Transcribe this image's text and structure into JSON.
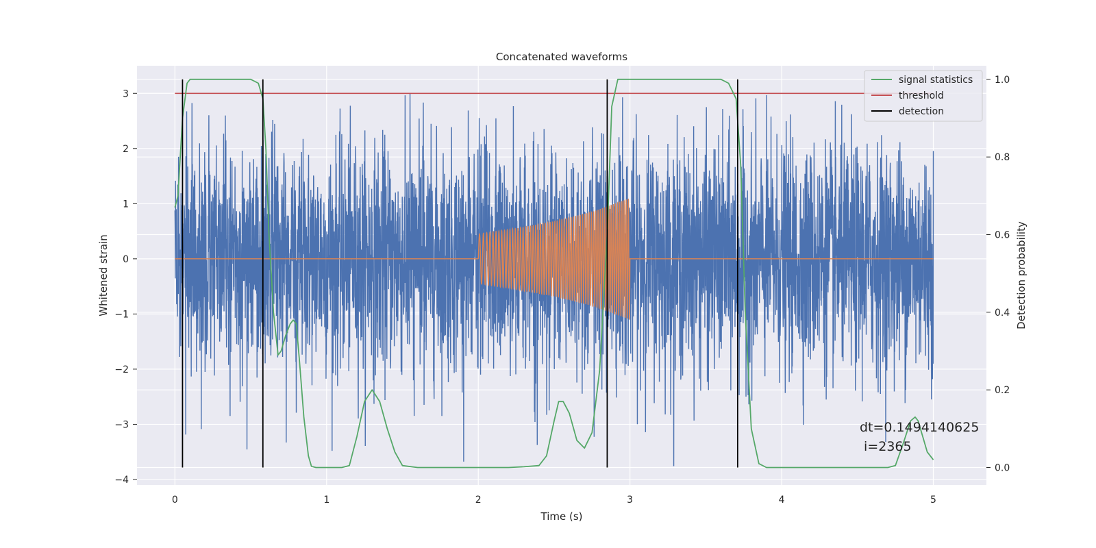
{
  "chart_data": {
    "type": "line",
    "title": "Concatenated waveforms",
    "xlabel": "Time (s)",
    "ylabel": "Whitened strain",
    "y2label": "Detection probability",
    "xlim": [
      -0.25,
      5.35
    ],
    "ylim": [
      -4.1,
      3.5
    ],
    "y2lim": [
      -0.045,
      1.035
    ],
    "x_ticks": [
      0,
      1,
      2,
      3,
      4,
      5
    ],
    "y_ticks": [
      -4,
      -3,
      -2,
      -1,
      0,
      1,
      2,
      3
    ],
    "y2_ticks": [
      0.0,
      0.2,
      0.4,
      0.6,
      0.8,
      1.0
    ],
    "x_tick_labels": [
      "0",
      "1",
      "2",
      "3",
      "4",
      "5"
    ],
    "y_tick_labels": [
      "−4",
      "−3",
      "−2",
      "−1",
      "0",
      "1",
      "2",
      "3"
    ],
    "y2_tick_labels": [
      "0.0",
      "0.2",
      "0.4",
      "0.6",
      "0.8",
      "1.0"
    ],
    "grid": true,
    "legend_position": "top-right",
    "series": [
      {
        "name": "",
        "axis": "left",
        "color": "#4c72b0",
        "description": "whitened noise, roughly Gaussian with standard deviation about 1, sampled densely from 0 to 5 s",
        "x_range": [
          0,
          5
        ],
        "approx_std": 1.0,
        "approx_extremes": [
          -3.8,
          3.0
        ]
      },
      {
        "name": "",
        "axis": "left",
        "color": "#dd8452",
        "description": "injected chirp signal, zero except between 2 and 3 s",
        "x": [
          0,
          2.0,
          2.25,
          2.5,
          2.75,
          3.0,
          5.0
        ],
        "envelope": [
          0,
          0.45,
          0.55,
          0.68,
          0.85,
          1.1,
          0
        ],
        "cycles_between_2_and_3s": 62
      },
      {
        "name": "signal statistics",
        "axis": "right",
        "color": "#55a868",
        "x": [
          0.0,
          0.02,
          0.05,
          0.08,
          0.1,
          0.15,
          0.2,
          0.3,
          0.4,
          0.5,
          0.55,
          0.58,
          0.6,
          0.62,
          0.65,
          0.68,
          0.7,
          0.73,
          0.76,
          0.78,
          0.8,
          0.82,
          0.85,
          0.88,
          0.9,
          0.93,
          1.0,
          1.1,
          1.15,
          1.2,
          1.25,
          1.3,
          1.35,
          1.4,
          1.45,
          1.5,
          1.6,
          1.8,
          2.0,
          2.2,
          2.3,
          2.4,
          2.45,
          2.5,
          2.53,
          2.56,
          2.6,
          2.65,
          2.7,
          2.75,
          2.8,
          2.85,
          2.88,
          2.92,
          3.0,
          3.2,
          3.5,
          3.6,
          3.65,
          3.7,
          3.73,
          3.76,
          3.8,
          3.85,
          3.9,
          4.0,
          4.2,
          4.5,
          4.7,
          4.75,
          4.8,
          4.85,
          4.88,
          4.9,
          4.93,
          4.96,
          5.0
        ],
        "values": [
          0.67,
          0.7,
          0.9,
          0.99,
          1.0,
          1.0,
          1.0,
          1.0,
          1.0,
          1.0,
          0.99,
          0.95,
          0.82,
          0.6,
          0.4,
          0.29,
          0.3,
          0.34,
          0.37,
          0.38,
          0.37,
          0.28,
          0.13,
          0.03,
          0.003,
          0.0,
          0.0,
          0.0,
          0.005,
          0.08,
          0.17,
          0.2,
          0.17,
          0.1,
          0.04,
          0.005,
          0.0,
          0.0,
          0.0,
          0.0,
          0.002,
          0.005,
          0.03,
          0.12,
          0.17,
          0.17,
          0.14,
          0.07,
          0.05,
          0.09,
          0.25,
          0.6,
          0.93,
          1.0,
          1.0,
          1.0,
          1.0,
          1.0,
          0.99,
          0.95,
          0.78,
          0.4,
          0.1,
          0.01,
          0.0,
          0.0,
          0.0,
          0.0,
          0.0,
          0.005,
          0.06,
          0.12,
          0.13,
          0.12,
          0.08,
          0.04,
          0.02
        ]
      },
      {
        "name": "threshold",
        "axis": "left",
        "color": "#c44e52",
        "x": [
          0,
          5
        ],
        "values": [
          3,
          3
        ]
      },
      {
        "name": "detection",
        "axis": "right",
        "color": "#000000",
        "vertical_lines_x": [
          0.05,
          0.58,
          2.85,
          3.71
        ],
        "span": [
          0,
          1
        ]
      }
    ],
    "annotation": {
      "line1": "dt=0.1494140625",
      "line2": " i=2365",
      "x": 4.5,
      "y2": 0.12
    }
  }
}
